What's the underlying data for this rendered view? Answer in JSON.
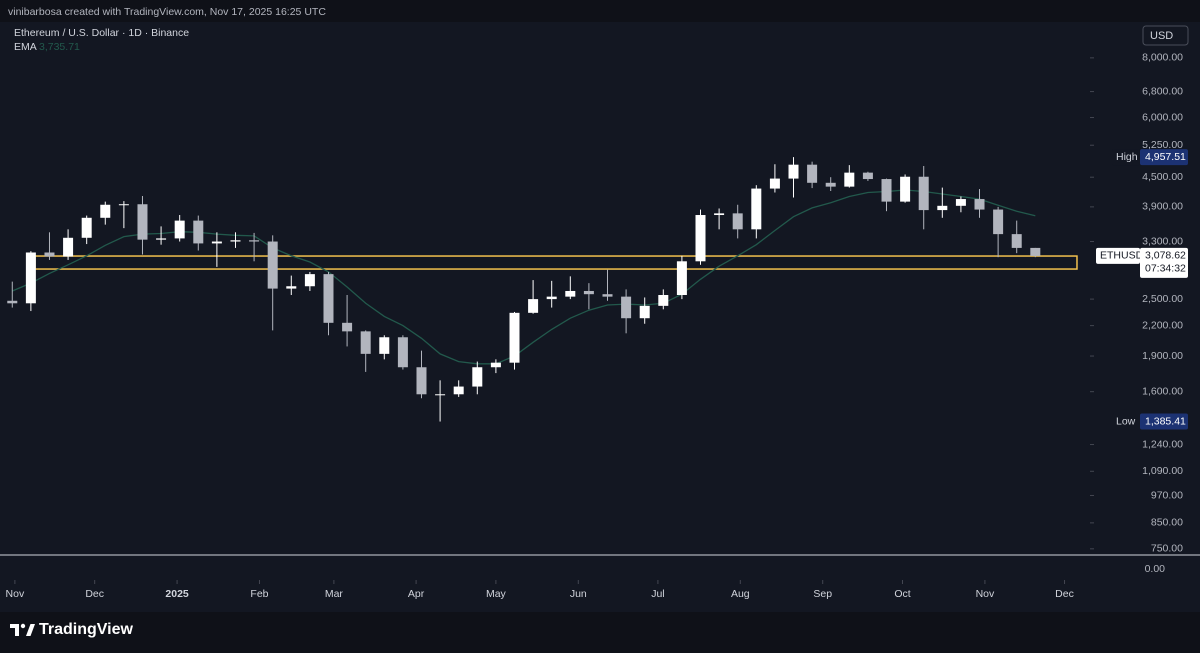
{
  "chart_data": {
    "type": "candlestick",
    "header": "vinibarbosa created with TradingView.com, Nov 17, 2025 16:25 UTC",
    "title": "Ethereum / U.S. Dollar · 1D · Binance",
    "currency": "USD",
    "brand": "TradingView",
    "log_scale": true,
    "up_color": "#ffffff",
    "down_color": "#b2b5be",
    "categories": [
      null,
      null,
      null,
      null,
      null,
      null,
      null,
      null,
      null,
      null,
      null,
      null,
      null,
      null,
      null,
      null,
      null,
      null,
      null,
      null,
      null,
      null,
      null,
      null,
      null,
      null,
      null,
      null,
      null,
      null,
      null,
      null,
      null,
      null,
      null,
      null,
      null,
      null,
      null,
      null,
      null,
      null,
      null,
      null,
      null,
      null,
      null,
      null,
      null,
      null,
      null,
      null,
      null,
      null,
      null,
      null
    ],
    "open": [
      2480,
      2450,
      3130,
      3070,
      3360,
      3700,
      3940,
      3950,
      3330,
      3350,
      3650,
      3270,
      3300,
      3320,
      3300,
      2630,
      2660,
      2820,
      2230,
      2140,
      1920,
      2080,
      1800,
      1580,
      1580,
      1640,
      1800,
      1840,
      2340,
      2500,
      2530,
      2600,
      2560,
      2530,
      2280,
      2420,
      2550,
      3000,
      3750,
      3780,
      3500,
      4260,
      4470,
      4780,
      4380,
      4300,
      4600,
      4460,
      4000,
      4510,
      3840,
      3920,
      4050,
      3850,
      3420,
      3200
    ],
    "high": [
      2720,
      3150,
      3450,
      3500,
      3740,
      4000,
      4010,
      4110,
      3550,
      3750,
      3740,
      3450,
      3450,
      3440,
      3400,
      2800,
      2850,
      2850,
      2550,
      2150,
      2100,
      2100,
      1950,
      1690,
      1690,
      1850,
      1870,
      2350,
      2740,
      2730,
      2790,
      2700,
      2880,
      2620,
      2520,
      2620,
      3080,
      3850,
      3870,
      3940,
      4330,
      4790,
      4957.51,
      4850,
      4500,
      4770,
      4620,
      4470,
      4560,
      4750,
      4280,
      4100,
      4250,
      3900,
      3650,
      3200
    ],
    "low": [
      2400,
      2360,
      3020,
      3020,
      3260,
      3580,
      3520,
      3100,
      3250,
      3300,
      3160,
      2920,
      3200,
      3000,
      2150,
      2550,
      2600,
      2100,
      1990,
      1760,
      1870,
      1780,
      1550,
      1385.41,
      1560,
      1580,
      1750,
      1780,
      2330,
      2400,
      2500,
      2380,
      2480,
      2120,
      2220,
      2380,
      2500,
      2950,
      3500,
      3350,
      3350,
      4180,
      4080,
      4270,
      4210,
      4280,
      4420,
      3820,
      3980,
      3500,
      3700,
      3800,
      3700,
      3060,
      3120,
      3060
    ],
    "close": [
      2450,
      3130,
      3070,
      3360,
      3700,
      3940,
      3950,
      3330,
      3350,
      3650,
      3270,
      3300,
      3320,
      3300,
      2630,
      2660,
      2820,
      2230,
      2140,
      1920,
      2080,
      1800,
      1580,
      1580,
      1640,
      1800,
      1840,
      2340,
      2500,
      2530,
      2600,
      2560,
      2530,
      2280,
      2420,
      2550,
      3000,
      3750,
      3780,
      3500,
      4260,
      4470,
      4780,
      4380,
      4300,
      4600,
      4460,
      4000,
      4510,
      3840,
      3920,
      4050,
      3850,
      3420,
      3200,
      3078.62
    ],
    "series": [
      {
        "name": "EMA",
        "color": "#22594c",
        "legend_value": "3,735.71",
        "values": [
          2600,
          2700,
          2830,
          2950,
          3080,
          3240,
          3380,
          3420,
          3430,
          3460,
          3450,
          3420,
          3400,
          3390,
          3200,
          3080,
          2990,
          2850,
          2650,
          2450,
          2300,
          2200,
          2070,
          1920,
          1850,
          1830,
          1830,
          1900,
          2030,
          2160,
          2280,
          2370,
          2430,
          2440,
          2430,
          2450,
          2560,
          2750,
          2930,
          3080,
          3250,
          3480,
          3720,
          3880,
          3980,
          4100,
          4180,
          4200,
          4230,
          4200,
          4150,
          4100,
          4050,
          3930,
          3820,
          3735.71
        ]
      }
    ],
    "ylim": [
      728,
      9510
    ],
    "yticks": [
      {
        "value": 8000,
        "label": "8,000.00"
      },
      {
        "value": 6800,
        "label": "6,800.00"
      },
      {
        "value": 6000,
        "label": "6,000.00"
      },
      {
        "value": 5250,
        "label": "5,250.00"
      },
      {
        "value": 4500,
        "label": "4,500.00"
      },
      {
        "value": 3900,
        "label": "3,900.00"
      },
      {
        "value": 3300,
        "label": "3,300.00"
      },
      {
        "value": 2500,
        "label": "2,500.00"
      },
      {
        "value": 2200,
        "label": "2,200.00"
      },
      {
        "value": 1900,
        "label": "1,900.00"
      },
      {
        "value": 1600,
        "label": "1,600.00"
      },
      {
        "value": 1240,
        "label": "1,240.00"
      },
      {
        "value": 1090,
        "label": "1,090.00"
      },
      {
        "value": 970,
        "label": "970.00"
      },
      {
        "value": 850,
        "label": "850.00"
      },
      {
        "value": 750,
        "label": "750.00"
      }
    ],
    "lower_pane_ticks": [
      {
        "value": 0,
        "label": "0.00"
      }
    ],
    "xlim": [
      -0.23,
      57.94
    ],
    "xticks": [
      {
        "value": 0.14,
        "label": "Nov"
      },
      {
        "value": 4.43,
        "label": "Dec"
      },
      {
        "value": 8.86,
        "label": "2025"
      },
      {
        "value": 13.29,
        "label": "Feb"
      },
      {
        "value": 17.29,
        "label": "Mar"
      },
      {
        "value": 21.71,
        "label": "Apr"
      },
      {
        "value": 26,
        "label": "May"
      },
      {
        "value": 30.43,
        "label": "Jun"
      },
      {
        "value": 34.71,
        "label": "Jul"
      },
      {
        "value": 39.14,
        "label": "Aug"
      },
      {
        "value": 43.57,
        "label": "Sep"
      },
      {
        "value": 47.86,
        "label": "Oct"
      },
      {
        "value": 52.29,
        "label": "Nov"
      },
      {
        "value": 56.57,
        "label": "Dec"
      }
    ],
    "zone": {
      "color": "#f2c14e",
      "xlim": [
        1.22,
        57.24
      ],
      "ylim": [
        2890,
        3077
      ]
    },
    "price_labels": [
      {
        "name": "High",
        "value": 4957.51,
        "label": "4,957.51",
        "color": "#1c3273"
      },
      {
        "name": "Low",
        "value": 1385.41,
        "label": "1,385.41",
        "color": "#1c3273"
      },
      {
        "name": "ETHUSD",
        "value": 3078.62,
        "label": "3,078.62",
        "color": "#ffffff"
      }
    ],
    "countdown": "07:34:32"
  }
}
